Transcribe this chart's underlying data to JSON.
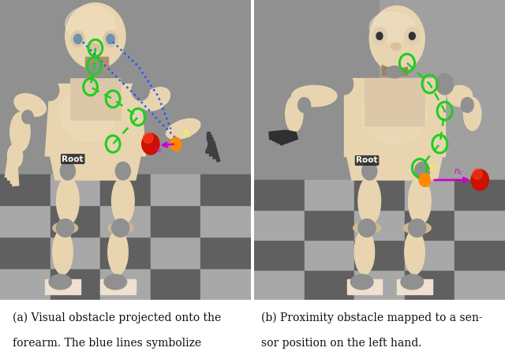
{
  "figure_width": 6.4,
  "figure_height": 4.5,
  "background_color": "#ffffff",
  "caption_fontsize": 10.0,
  "caption_color": "#111111",
  "panel_bg_left": "#8a8a8a",
  "panel_bg_right": "#8a8a8a",
  "floor_light": "#a8a8a8",
  "floor_dark": "#606060",
  "robot_skin": "#e8d5b0",
  "robot_skin_shadow": "#c8b088",
  "robot_joint": "#b0906a",
  "robot_metal": "#909090",
  "green_color": "#22cc22",
  "blue_dot_color": "#2255ff",
  "purple_color": "#cc00cc",
  "orange_color": "#ff8800",
  "red_color": "#cc1100",
  "yellow_color": "#ffff00",
  "caption_left_line1": "(a) Visual obstacle projected onto the",
  "caption_left_line2": "forearm. The blue lines symbolize",
  "caption_right_line1": "(b) Proximity obstacle mapped to a sen-",
  "caption_right_line2": "sor position on the left hand."
}
